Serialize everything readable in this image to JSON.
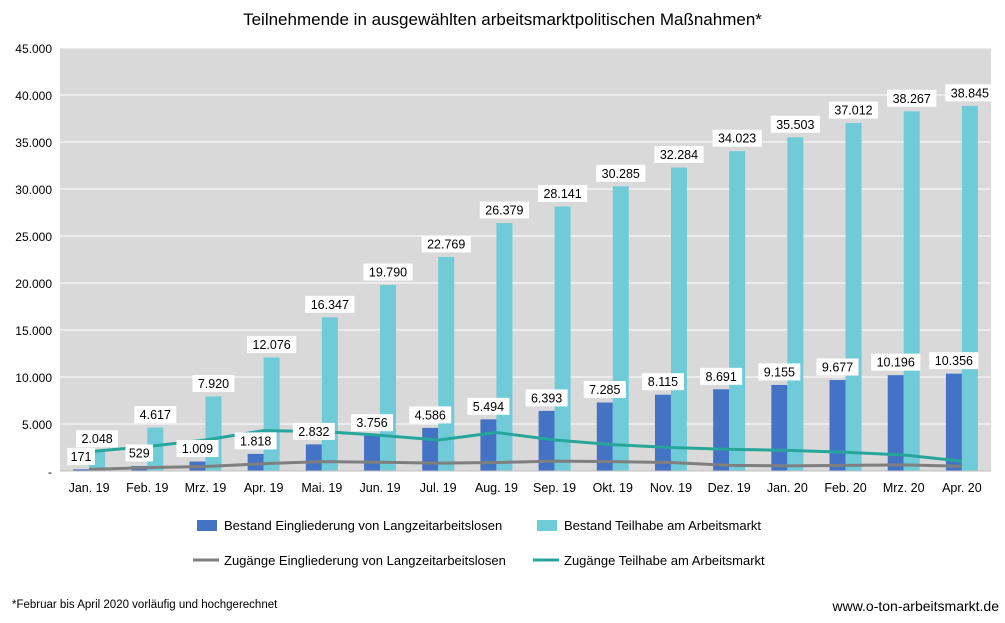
{
  "chart_data": {
    "type": "bar",
    "title": "Teilnehmende in ausgewählten arbeitsmarktpolitischen Maßnahmen*",
    "xlabel": "",
    "ylabel": "",
    "ylim": [
      0,
      45000
    ],
    "yticks": [
      "-",
      "5.000",
      "10.000",
      "15.000",
      "20.000",
      "25.000",
      "30.000",
      "35.000",
      "40.000",
      "45.000"
    ],
    "grid": true,
    "legend_position": "bottom",
    "categories": [
      "Jan. 19",
      "Feb. 19",
      "Mrz. 19",
      "Apr. 19",
      "Mai. 19",
      "Jun. 19",
      "Jul. 19",
      "Aug. 19",
      "Sep. 19",
      "Okt. 19",
      "Nov. 19",
      "Dez. 19",
      "Jan. 20",
      "Feb. 20",
      "Mrz. 20",
      "Apr. 20"
    ],
    "series": [
      {
        "name": "Bestand Eingliederung von Langzeitarbeitslosen",
        "kind": "bar",
        "color": "#4472C4",
        "values": [
          171,
          529,
          1009,
          1818,
          2832,
          3756,
          4586,
          5494,
          6393,
          7285,
          8115,
          8691,
          9155,
          9677,
          10196,
          10356
        ],
        "labels": [
          "171",
          "529",
          "1.009",
          "1.818",
          "2.832",
          "3.756",
          "4.586",
          "5.494",
          "6.393",
          "7.285",
          "8.115",
          "8.691",
          "9.155",
          "9.677",
          "10.196",
          "10.356"
        ]
      },
      {
        "name": "Bestand Teilhabe am Arbeitsmarkt",
        "kind": "bar",
        "color": "#6FCBD8",
        "values": [
          2048,
          4617,
          7920,
          12076,
          16347,
          19790,
          22769,
          26379,
          28141,
          30285,
          32284,
          34023,
          35503,
          37012,
          38267,
          38845
        ],
        "labels": [
          "2.048",
          "4.617",
          "7.920",
          "12.076",
          "16.347",
          "19.790",
          "22.769",
          "26.379",
          "28.141",
          "30.285",
          "32.284",
          "34.023",
          "35.503",
          "37.012",
          "38.267",
          "38.845"
        ]
      },
      {
        "name": "Zugänge Eingliederung von Langzeitarbeitslosen",
        "kind": "line",
        "color": "#7F7F7F",
        "values": [
          170,
          360,
          480,
          780,
          1000,
          930,
          840,
          900,
          1050,
          1000,
          900,
          600,
          550,
          600,
          650,
          500
        ]
      },
      {
        "name": "Zugänge Teilhabe am Arbeitsmarkt",
        "kind": "line",
        "color": "#26A69A",
        "values": [
          2050,
          2600,
          3300,
          4300,
          4200,
          3800,
          3300,
          4100,
          3300,
          2800,
          2500,
          2300,
          2200,
          2000,
          1700,
          1050
        ]
      }
    ],
    "footnote": "*Februar bis April 2020 vorläufig und hochgerechnet",
    "source": "www.o-ton-arbeitsmarkt.de"
  }
}
